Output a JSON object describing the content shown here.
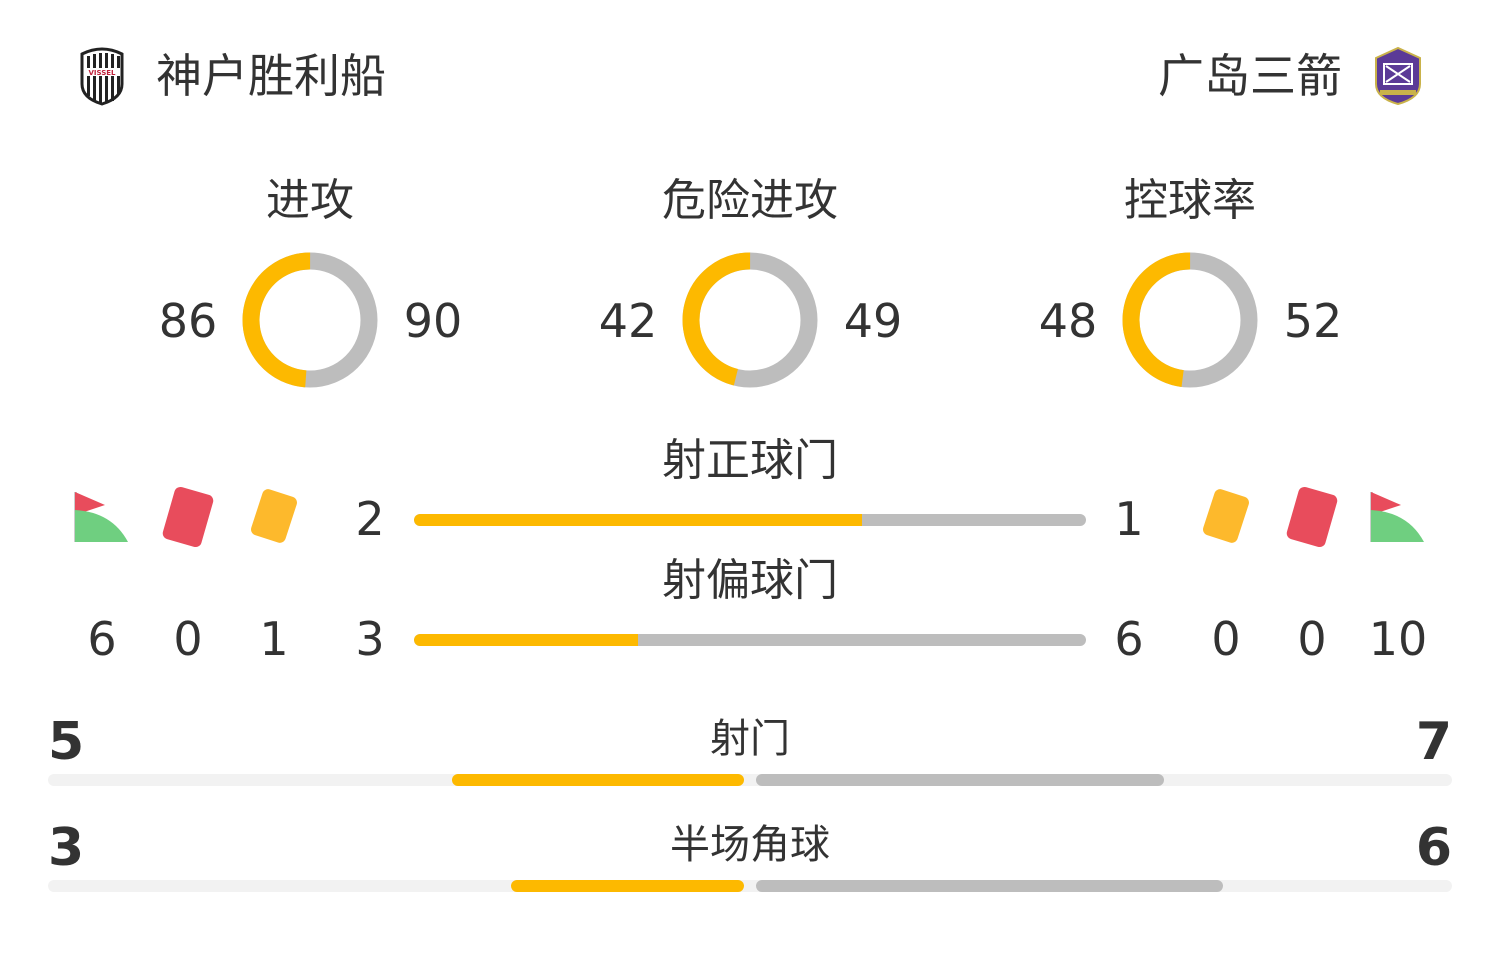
{
  "home": {
    "name": "神户胜利船",
    "logo_text": "VISSEL"
  },
  "away": {
    "name": "广岛三箭"
  },
  "colors": {
    "home": "#fdb900",
    "away": "#bdbdbd"
  },
  "donuts": [
    {
      "title": "进攻",
      "home": 86,
      "away": 90
    },
    {
      "title": "危险进攻",
      "home": 42,
      "away": 49
    },
    {
      "title": "控球率",
      "home": 48,
      "away": 52
    }
  ],
  "shots_on": {
    "title": "射正球门",
    "home": 2,
    "away": 1
  },
  "shots_off": {
    "title": "射偏球门",
    "home": 3,
    "away": 6
  },
  "cards": {
    "home": {
      "corners": 6,
      "red": 0,
      "yellow": 1
    },
    "away": {
      "corners": 10,
      "red": 0,
      "yellow": 0
    }
  },
  "shots": {
    "title": "射门",
    "home": 5,
    "away": 7
  },
  "half_corners": {
    "title": "半场角球",
    "home": 3,
    "away": 6
  }
}
